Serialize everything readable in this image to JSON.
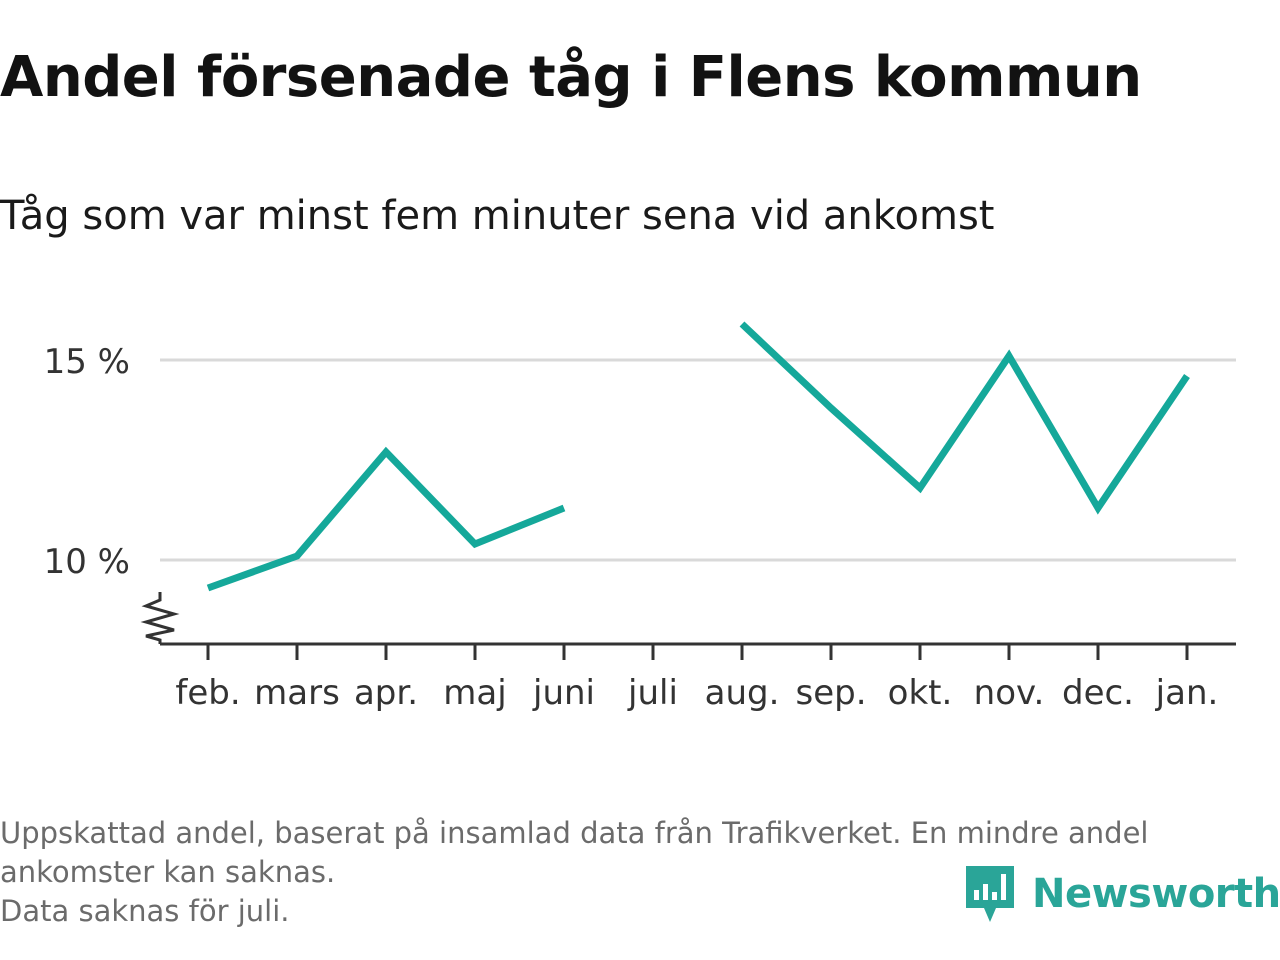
{
  "title": "Andel försenade tåg i Flens kommun",
  "subtitle": "Tåg som var minst fem minuter sena vid ankomst",
  "notes": [
    "Uppskattad andel, baserat på insamlad data från Trafikverket. En mindre andel",
    "ankomster kan saknas.",
    "Data saknas för juli."
  ],
  "brand": {
    "name": "Newsworthy",
    "icon": "newsworthy-logo-icon",
    "color": "#2aa598"
  },
  "chart_data": {
    "type": "line",
    "categories": [
      "feb.",
      "mars",
      "apr.",
      "maj",
      "juni",
      "juli",
      "aug.",
      "sep.",
      "okt.",
      "nov.",
      "dec.",
      "jan."
    ],
    "series": [
      {
        "values": [
          9.3,
          10.1,
          12.7,
          10.4,
          11.3,
          null,
          15.9,
          13.8,
          11.8,
          15.1,
          11.3,
          14.6
        ],
        "color": "#15a89a"
      }
    ],
    "yticks": [
      10,
      15
    ],
    "ytick_labels": [
      "10 %",
      "15 %"
    ],
    "ylim": [
      7.9,
      16.5
    ],
    "y_axis_break": true,
    "grid": true,
    "xlabel": "",
    "ylabel": ""
  }
}
